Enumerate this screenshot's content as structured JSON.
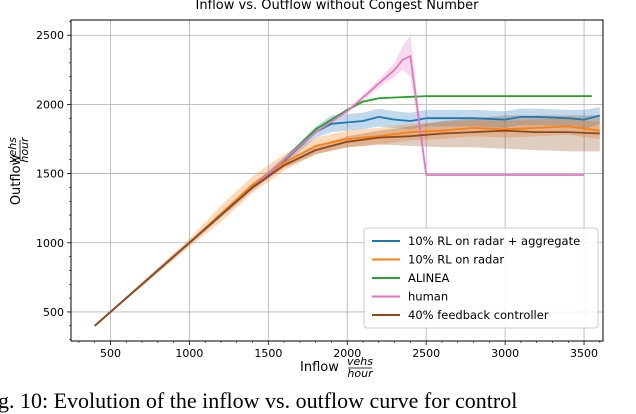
{
  "chart_data": {
    "type": "line",
    "title": "Inflow vs. Outflow without Congest Number",
    "xlabel": "Inflow",
    "xlabel_unit_num": "vehs",
    "xlabel_unit_den": "hour",
    "ylabel": "Outflow",
    "ylabel_unit_num": "vehs",
    "ylabel_unit_den": "hour",
    "xlim": [
      250,
      3620
    ],
    "ylim": [
      290,
      2610
    ],
    "xticks": [
      500,
      1000,
      1500,
      2000,
      2500,
      3000,
      3500
    ],
    "yticks": [
      500,
      1000,
      1500,
      2000,
      2500
    ],
    "xtick_labels": [
      "500",
      "1000",
      "1500",
      "2000",
      "2500",
      "3000",
      "3500"
    ],
    "ytick_labels": [
      "500",
      "1000",
      "1500",
      "2000",
      "2500"
    ],
    "grid": true,
    "legend_position": "lower-right",
    "series": [
      {
        "name": "10% RL on radar + aggregate",
        "color": "#1f77b4",
        "x": [
          400,
          600,
          800,
          1000,
          1200,
          1400,
          1600,
          1800,
          1900,
          2000,
          2100,
          2200,
          2300,
          2400,
          2500,
          2600,
          2800,
          3000,
          3100,
          3200,
          3400,
          3500,
          3600
        ],
        "y": [
          400,
          600,
          800,
          1000,
          1200,
          1400,
          1590,
          1800,
          1860,
          1870,
          1880,
          1910,
          1890,
          1880,
          1900,
          1900,
          1900,
          1890,
          1910,
          1910,
          1900,
          1890,
          1920
        ],
        "band_low": [
          395,
          590,
          785,
          985,
          1180,
          1375,
          1560,
          1760,
          1800,
          1810,
          1820,
          1840,
          1830,
          1820,
          1840,
          1840,
          1840,
          1830,
          1850,
          1850,
          1840,
          1820,
          1860
        ],
        "band_high": [
          405,
          610,
          815,
          1015,
          1220,
          1425,
          1620,
          1840,
          1920,
          1930,
          1940,
          1970,
          1950,
          1940,
          1960,
          1960,
          1960,
          1950,
          1970,
          1970,
          1960,
          1960,
          1980
        ]
      },
      {
        "name": "10% RL on radar",
        "color": "#ff7f0e",
        "x": [
          400,
          600,
          800,
          1000,
          1200,
          1400,
          1600,
          1800,
          2000,
          2200,
          2400,
          2600,
          2800,
          3000,
          3200,
          3400,
          3600
        ],
        "y": [
          400,
          600,
          800,
          1000,
          1210,
          1420,
          1580,
          1700,
          1750,
          1770,
          1800,
          1810,
          1830,
          1820,
          1830,
          1840,
          1810
        ],
        "band_low": [
          395,
          590,
          780,
          970,
          1150,
          1360,
          1520,
          1640,
          1690,
          1710,
          1740,
          1750,
          1770,
          1760,
          1770,
          1780,
          1750
        ],
        "band_high": [
          405,
          610,
          820,
          1030,
          1270,
          1480,
          1640,
          1760,
          1810,
          1830,
          1860,
          1870,
          1890,
          1880,
          1890,
          1900,
          1870
        ]
      },
      {
        "name": "ALINEA",
        "color": "#2ca02c",
        "x": [
          400,
          600,
          800,
          1000,
          1200,
          1400,
          1600,
          1800,
          2000,
          2100,
          2200,
          2300,
          2400,
          2500,
          2800,
          3000,
          3200,
          3400,
          3550
        ],
        "y": [
          400,
          600,
          800,
          1000,
          1200,
          1400,
          1600,
          1820,
          1960,
          2020,
          2045,
          2050,
          2055,
          2060,
          2060,
          2060,
          2060,
          2060,
          2060
        ],
        "band_low": [
          400,
          600,
          800,
          1000,
          1200,
          1400,
          1600,
          1810,
          1950,
          2010,
          2040,
          2045,
          2050,
          2055,
          2055,
          2055,
          2055,
          2055,
          2055
        ],
        "band_high": [
          400,
          600,
          800,
          1000,
          1200,
          1400,
          1600,
          1830,
          1970,
          2030,
          2050,
          2055,
          2060,
          2065,
          2065,
          2065,
          2065,
          2065,
          2065
        ]
      },
      {
        "name": "human",
        "color": "#e377c2",
        "x": [
          400,
          600,
          800,
          1000,
          1200,
          1400,
          1600,
          1800,
          2000,
          2100,
          2200,
          2300,
          2350,
          2400,
          2500,
          2700,
          3000,
          3200,
          3500
        ],
        "y": [
          400,
          600,
          800,
          1000,
          1200,
          1400,
          1600,
          1800,
          1950,
          2050,
          2150,
          2250,
          2320,
          2350,
          1490,
          1490,
          1490,
          1490,
          1490
        ],
        "band_low": [
          400,
          600,
          800,
          1000,
          1200,
          1400,
          1600,
          1800,
          1940,
          2030,
          2120,
          2200,
          2250,
          2200,
          1485,
          1485,
          1485,
          1485,
          1485
        ],
        "band_high": [
          400,
          600,
          800,
          1000,
          1200,
          1400,
          1600,
          1800,
          1960,
          2070,
          2180,
          2300,
          2420,
          2500,
          1495,
          1495,
          1495,
          1495,
          1495
        ]
      },
      {
        "name": "40% feedback controller",
        "color": "#8c4a1c",
        "x": [
          400,
          600,
          800,
          1000,
          1200,
          1400,
          1600,
          1800,
          2000,
          2200,
          2400,
          2600,
          2800,
          3000,
          3200,
          3400,
          3600
        ],
        "y": [
          400,
          600,
          800,
          1000,
          1200,
          1400,
          1560,
          1670,
          1730,
          1760,
          1770,
          1790,
          1800,
          1810,
          1800,
          1800,
          1790
        ],
        "band_low": [
          398,
          597,
          797,
          997,
          1195,
          1390,
          1540,
          1640,
          1690,
          1710,
          1700,
          1690,
          1690,
          1680,
          1670,
          1660,
          1660
        ],
        "band_high": [
          402,
          603,
          803,
          1003,
          1205,
          1410,
          1580,
          1700,
          1770,
          1810,
          1840,
          1880,
          1900,
          1920,
          1920,
          1920,
          1920
        ]
      }
    ]
  },
  "caption": "g. 10: Evolution of the inflow vs. outflow curve for control"
}
